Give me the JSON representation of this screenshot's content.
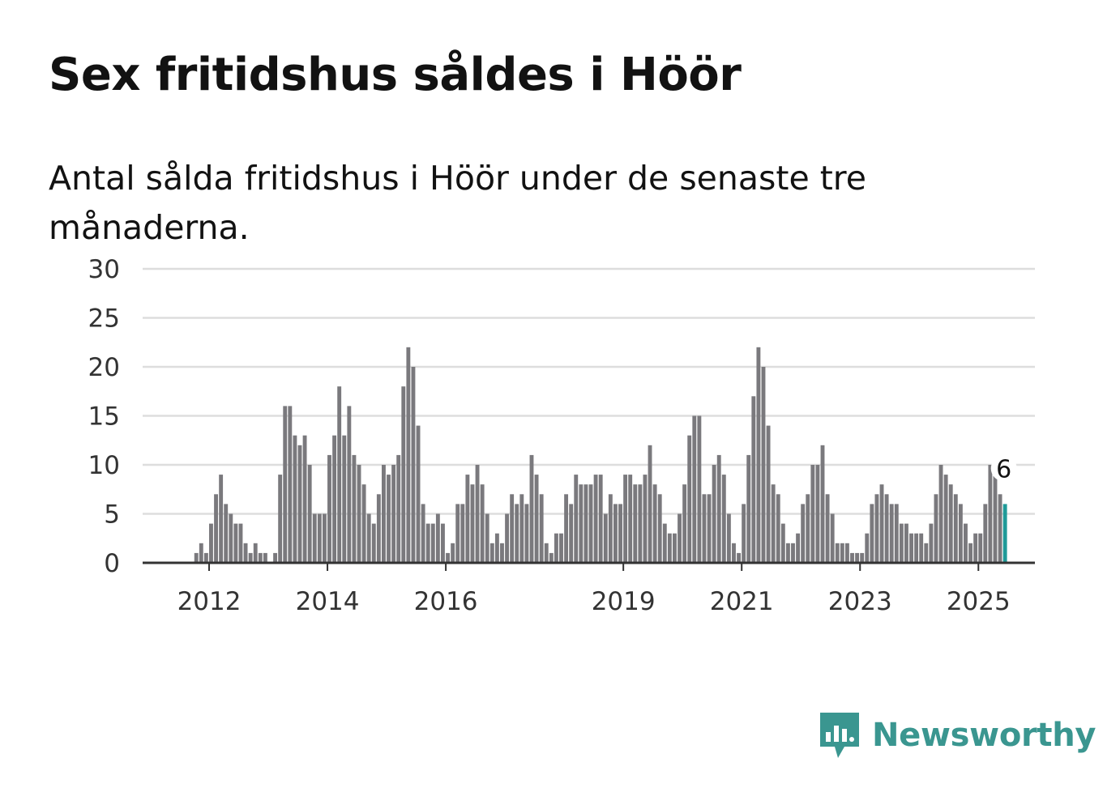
{
  "title": "Sex fritidshus såldes i Höör",
  "subtitle": "Antal sålda fritidshus i Höör under de senaste tre månaderna.",
  "brand": {
    "name": "Newsworthy",
    "color": "#3a9690",
    "icon": "bar-chart-speech-bubble-icon"
  },
  "chart_data": {
    "type": "bar",
    "start": "2011-01",
    "ylim": [
      0,
      30
    ],
    "yticks": [
      0,
      5,
      10,
      15,
      20,
      25,
      30
    ],
    "xticks": [
      "2012",
      "2014",
      "2016",
      "2019",
      "2021",
      "2023",
      "2025"
    ],
    "bar_color": "#7a797d",
    "highlight_color": "#1f9a98",
    "highlight_label": "6",
    "values": [
      0,
      0,
      0,
      0,
      0,
      0,
      0,
      0,
      0,
      1,
      2,
      1,
      4,
      7,
      9,
      6,
      5,
      4,
      4,
      2,
      1,
      2,
      1,
      1,
      0,
      1,
      9,
      16,
      16,
      13,
      12,
      13,
      10,
      5,
      5,
      5,
      11,
      13,
      18,
      13,
      16,
      11,
      10,
      8,
      5,
      4,
      7,
      10,
      9,
      10,
      11,
      18,
      22,
      20,
      14,
      6,
      4,
      4,
      5,
      4,
      1,
      2,
      6,
      6,
      9,
      8,
      10,
      8,
      5,
      2,
      3,
      2,
      5,
      7,
      6,
      7,
      6,
      11,
      9,
      7,
      2,
      1,
      3,
      3,
      7,
      6,
      9,
      8,
      8,
      8,
      9,
      9,
      5,
      7,
      6,
      6,
      9,
      9,
      8,
      8,
      9,
      12,
      8,
      7,
      4,
      3,
      3,
      5,
      8,
      13,
      15,
      15,
      7,
      7,
      10,
      11,
      9,
      5,
      2,
      1,
      6,
      11,
      17,
      22,
      20,
      14,
      8,
      7,
      4,
      2,
      2,
      3,
      6,
      7,
      10,
      10,
      12,
      7,
      5,
      2,
      2,
      2,
      1,
      1,
      1,
      3,
      6,
      7,
      8,
      7,
      6,
      6,
      4,
      4,
      3,
      3,
      3,
      2,
      4,
      7,
      10,
      9,
      8,
      7,
      6,
      4,
      2,
      3,
      3,
      6,
      10,
      10,
      7,
      6
    ]
  }
}
